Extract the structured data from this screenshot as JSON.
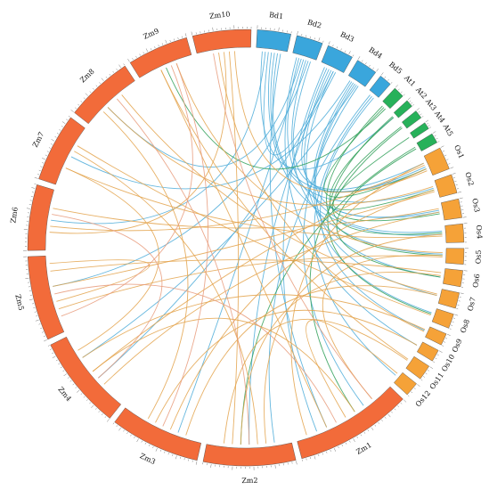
{
  "colors": {
    "Zm": "#f26b3a",
    "Bd": "#3aa6dc",
    "At": "#27b15a",
    "Os": "#f5a238",
    "link_Zm_Os": "#e3a24a",
    "link_Bd": "#4aaad8",
    "link_At": "#2e9f57",
    "link_Zm_Zm": "#e89a7a"
  },
  "chromosomes": [
    {
      "id": "Zm1",
      "genome": "Zm",
      "size": 301
    },
    {
      "id": "Zm2",
      "genome": "Zm",
      "size": 237
    },
    {
      "id": "Zm3",
      "genome": "Zm",
      "size": 232
    },
    {
      "id": "Zm4",
      "genome": "Zm",
      "size": 241
    },
    {
      "id": "Zm5",
      "genome": "Zm",
      "size": 217
    },
    {
      "id": "Zm6",
      "genome": "Zm",
      "size": 169
    },
    {
      "id": "Zm7",
      "genome": "Zm",
      "size": 176
    },
    {
      "id": "Zm8",
      "genome": "Zm",
      "size": 175
    },
    {
      "id": "Zm9",
      "genome": "Zm",
      "size": 157
    },
    {
      "id": "Zm10",
      "genome": "Zm",
      "size": 150
    },
    {
      "id": "Bd1",
      "genome": "Bd",
      "size": 75
    },
    {
      "id": "Bd2",
      "genome": "Bd",
      "size": 59
    },
    {
      "id": "Bd3",
      "genome": "Bd",
      "size": 59
    },
    {
      "id": "Bd4",
      "genome": "Bd",
      "size": 48
    },
    {
      "id": "Bd5",
      "genome": "Bd",
      "size": 28
    },
    {
      "id": "At1",
      "genome": "At",
      "size": 30
    },
    {
      "id": "At2",
      "genome": "At",
      "size": 20
    },
    {
      "id": "At3",
      "genome": "At",
      "size": 23
    },
    {
      "id": "At4",
      "genome": "At",
      "size": 19
    },
    {
      "id": "At5",
      "genome": "At",
      "size": 27
    },
    {
      "id": "Os1",
      "genome": "Os",
      "size": 43
    },
    {
      "id": "Os2",
      "genome": "Os",
      "size": 36
    },
    {
      "id": "Os3",
      "genome": "Os",
      "size": 36
    },
    {
      "id": "Os4",
      "genome": "Os",
      "size": 35
    },
    {
      "id": "Os5",
      "genome": "Os",
      "size": 30
    },
    {
      "id": "Os6",
      "genome": "Os",
      "size": 31
    },
    {
      "id": "Os7",
      "genome": "Os",
      "size": 30
    },
    {
      "id": "Os8",
      "genome": "Os",
      "size": 28
    },
    {
      "id": "Os9",
      "genome": "Os",
      "size": 23
    },
    {
      "id": "Os10",
      "genome": "Os",
      "size": 23
    },
    {
      "id": "Os11",
      "genome": "Os",
      "size": 29
    },
    {
      "id": "Os12",
      "genome": "Os",
      "size": 27
    }
  ],
  "links": [
    [
      "Bd1",
      0.2,
      "At2",
      0.5,
      "link_Bd"
    ],
    [
      "Bd1",
      0.5,
      "Os4",
      0.5,
      "link_Bd"
    ],
    [
      "Bd1",
      0.6,
      "Os2",
      0.4,
      "link_Bd"
    ],
    [
      "Bd1",
      0.8,
      "Zm1",
      0.7,
      "link_Bd"
    ],
    [
      "Bd1",
      0.3,
      "Zm6",
      0.5,
      "link_Bd"
    ],
    [
      "Bd1",
      0.7,
      "Os1",
      0.6,
      "link_Bd"
    ],
    [
      "Bd2",
      0.3,
      "Os3",
      0.5,
      "link_Bd"
    ],
    [
      "Bd2",
      0.5,
      "Zm3",
      0.3,
      "link_Bd"
    ],
    [
      "Bd2",
      0.6,
      "Os5",
      0.4,
      "link_Bd"
    ],
    [
      "Bd2",
      0.7,
      "Zm5",
      0.6,
      "link_Bd"
    ],
    [
      "Bd2",
      0.4,
      "Zm8",
      0.4,
      "link_Bd"
    ],
    [
      "Bd2",
      0.8,
      "Os1",
      0.3,
      "link_Bd"
    ],
    [
      "Bd3",
      0.3,
      "Os1",
      0.5,
      "link_Bd"
    ],
    [
      "Bd3",
      0.5,
      "Zm2",
      0.5,
      "link_Bd"
    ],
    [
      "Bd3",
      0.6,
      "Os6",
      0.6,
      "link_Bd"
    ],
    [
      "Bd3",
      0.7,
      "Zm4",
      0.4,
      "link_Bd"
    ],
    [
      "Bd3",
      0.4,
      "Os4",
      0.3,
      "link_Bd"
    ],
    [
      "Bd3",
      0.2,
      "Zm1",
      0.8,
      "link_Bd"
    ],
    [
      "Bd4",
      0.3,
      "Os3",
      0.4,
      "link_Bd"
    ],
    [
      "Bd4",
      0.5,
      "Os7",
      0.5,
      "link_Bd"
    ],
    [
      "Bd4",
      0.7,
      "Zm1",
      0.3,
      "link_Bd"
    ],
    [
      "Bd4",
      0.6,
      "Zm4",
      0.7,
      "link_Bd"
    ],
    [
      "Bd4",
      0.4,
      "Os8",
      0.4,
      "link_Bd"
    ],
    [
      "Bd5",
      0.5,
      "Os12",
      0.5,
      "link_Bd"
    ],
    [
      "Bd5",
      0.3,
      "Zm2",
      0.2,
      "link_Bd"
    ],
    [
      "Bd5",
      0.7,
      "Os9",
      0.5,
      "link_Bd"
    ],
    [
      "Bd1",
      0.4,
      "Bd3",
      0.6,
      "link_Bd"
    ],
    [
      "Bd2",
      0.2,
      "Os10",
      0.5,
      "link_Bd"
    ],
    [
      "Bd4",
      0.2,
      "Zm7",
      0.5,
      "link_Bd"
    ],
    [
      "At1",
      0.5,
      "Os1",
      0.6,
      "link_At"
    ],
    [
      "At1",
      0.3,
      "Os5",
      0.5,
      "link_At"
    ],
    [
      "At2",
      0.5,
      "Os3",
      0.6,
      "link_At"
    ],
    [
      "At3",
      0.4,
      "Os4",
      0.4,
      "link_At"
    ],
    [
      "At3",
      0.6,
      "Zm1",
      0.4,
      "link_At"
    ],
    [
      "At4",
      0.5,
      "Os2",
      0.5,
      "link_At"
    ],
    [
      "At5",
      0.5,
      "Os6",
      0.6,
      "link_At"
    ],
    [
      "At5",
      0.3,
      "Zm2",
      0.6,
      "link_At"
    ],
    [
      "At1",
      0.7,
      "Zm9",
      0.5,
      "link_At"
    ],
    [
      "At2",
      0.3,
      "Os8",
      0.5,
      "link_At"
    ],
    [
      "Zm1",
      0.2,
      "Os5",
      0.5,
      "link_Zm_Os"
    ],
    [
      "Zm1",
      0.5,
      "Os12",
      0.3,
      "link_Zm_Os"
    ],
    [
      "Zm1",
      0.9,
      "Os1",
      0.3,
      "link_Zm_Os"
    ],
    [
      "Zm2",
      0.3,
      "Os4",
      0.5,
      "link_Zm_Os"
    ],
    [
      "Zm2",
      0.6,
      "Os6",
      0.5,
      "link_Zm_Os"
    ],
    [
      "Zm2",
      0.8,
      "Os11",
      0.5,
      "link_Zm_Os"
    ],
    [
      "Zm3",
      0.4,
      "Os2",
      0.5,
      "link_Zm_Os"
    ],
    [
      "Zm3",
      0.6,
      "Os10",
      0.5,
      "link_Zm_Os"
    ],
    [
      "Zm3",
      0.2,
      "Os7",
      0.5,
      "link_Zm_Os"
    ],
    [
      "Zm4",
      0.3,
      "Os3",
      0.5,
      "link_Zm_Os"
    ],
    [
      "Zm4",
      0.7,
      "Os9",
      0.4,
      "link_Zm_Os"
    ],
    [
      "Zm4",
      0.5,
      "Os1",
      0.6,
      "link_Zm_Os"
    ],
    [
      "Zm5",
      0.3,
      "Os5",
      0.6,
      "link_Zm_Os"
    ],
    [
      "Zm5",
      0.6,
      "Os2",
      0.6,
      "link_Zm_Os"
    ],
    [
      "Zm5",
      0.8,
      "Os6",
      0.3,
      "link_Zm_Os"
    ],
    [
      "Zm6",
      0.4,
      "Os1",
      0.4,
      "link_Zm_Os"
    ],
    [
      "Zm6",
      0.7,
      "Os3",
      0.3,
      "link_Zm_Os"
    ],
    [
      "Zm7",
      0.3,
      "Os4",
      0.6,
      "link_Zm_Os"
    ],
    [
      "Zm7",
      0.7,
      "Os8",
      0.6,
      "link_Zm_Os"
    ],
    [
      "Zm8",
      0.4,
      "Os2",
      0.3,
      "link_Zm_Os"
    ],
    [
      "Zm8",
      0.7,
      "Os7",
      0.4,
      "link_Zm_Os"
    ],
    [
      "Zm9",
      0.4,
      "Os11",
      0.4,
      "link_Zm_Os"
    ],
    [
      "Zm9",
      0.7,
      "Os5",
      0.3,
      "link_Zm_Os"
    ],
    [
      "Zm10",
      0.4,
      "Os9",
      0.6,
      "link_Zm_Os"
    ],
    [
      "Zm10",
      0.7,
      "Os1",
      0.7,
      "link_Zm_Os"
    ],
    [
      "Zm1",
      0.4,
      "Zm4",
      0.5,
      "link_Zm_Os"
    ],
    [
      "Zm2",
      0.4,
      "Zm7",
      0.6,
      "link_Zm_Os"
    ],
    [
      "Zm3",
      0.7,
      "Zm8",
      0.3,
      "link_Zm_Os"
    ],
    [
      "Zm5",
      0.4,
      "Zm5",
      0.9,
      "link_Zm_Os"
    ],
    [
      "Zm6",
      0.3,
      "Zm10",
      0.5,
      "link_Zm_Os"
    ],
    [
      "Zm1",
      0.7,
      "Zm9",
      0.4,
      "link_Zm_Os"
    ],
    [
      "Zm2",
      0.7,
      "Zm10",
      0.6,
      "link_Zm_Os"
    ],
    [
      "Zm4",
      0.8,
      "Zm7",
      0.3,
      "link_Zm_Os"
    ],
    [
      "Zm3",
      0.5,
      "Zm9",
      0.7,
      "link_Zm_Zm"
    ],
    [
      "Zm1",
      0.6,
      "Zm5",
      0.5,
      "link_Zm_Zm"
    ],
    [
      "Zm2",
      0.5,
      "Zm8",
      0.6,
      "link_Zm_Zm"
    ],
    [
      "Zm4",
      0.4,
      "Zm6",
      0.6,
      "link_Zm_Zm"
    ],
    [
      "Zm10",
      0.3,
      "Zm1",
      0.2,
      "link_Zm_Zm"
    ],
    [
      "Zm5",
      0.2,
      "Zm9",
      0.6,
      "link_Zm_Zm"
    ]
  ]
}
